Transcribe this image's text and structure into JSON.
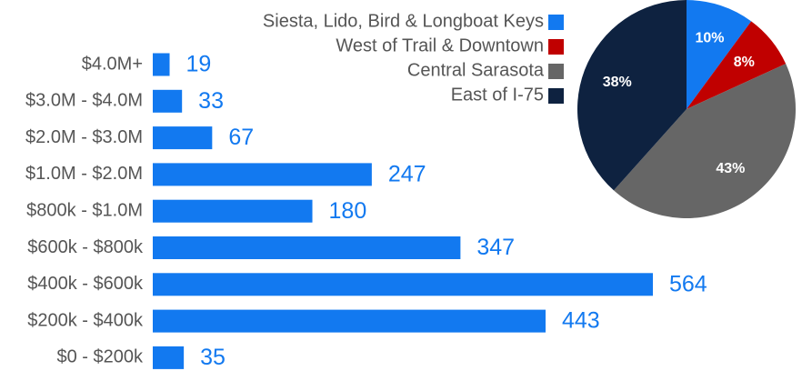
{
  "chart_data": [
    {
      "type": "bar",
      "orientation": "horizontal",
      "categories": [
        "$4.0M+",
        "$3.0M - $4.0M",
        "$2.0M - $3.0M",
        "$1.0M - $2.0M",
        "$800k - $1.0M",
        "$600k - $800k",
        "$400k - $600k",
        "$200k - $400k",
        "$0 - $200k"
      ],
      "values": [
        19,
        33,
        67,
        247,
        180,
        347,
        564,
        443,
        35
      ],
      "color": "#1279f0"
    },
    {
      "type": "pie",
      "categories": [
        "Siesta, Lido, Bird & Longboat Keys",
        "West of Trail & Downtown",
        "Central Sarasota",
        "East of I-75"
      ],
      "values": [
        10,
        8,
        43,
        38
      ],
      "value_labels": [
        "10%",
        "8%",
        "43%",
        "38%"
      ],
      "colors": [
        "#1279f0",
        "#c00000",
        "#666666",
        "#0e2240"
      ],
      "legend": "left"
    }
  ]
}
